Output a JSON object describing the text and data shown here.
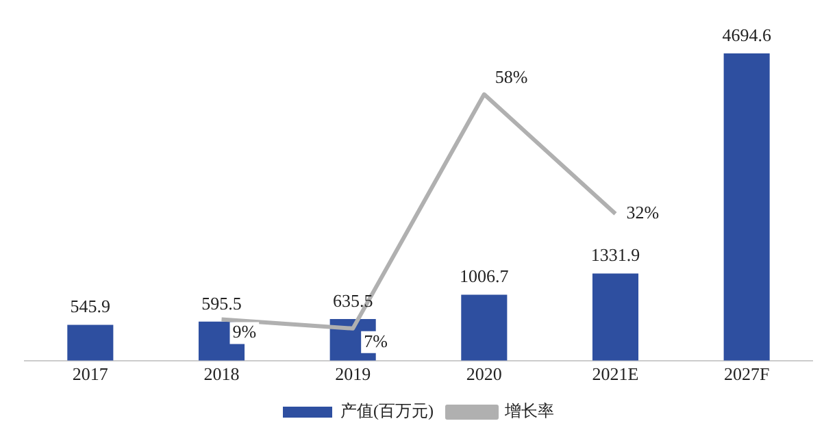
{
  "chart_data": {
    "type": "bar",
    "categories": [
      "2017",
      "2018",
      "2019",
      "2020",
      "2021E",
      "2027F"
    ],
    "series": [
      {
        "name": "产值(百万元)",
        "color": "#2e4fa0",
        "values": [
          545.9,
          595.5,
          635.5,
          1006.7,
          1331.9,
          4694.6
        ],
        "value_labels": [
          "545.9",
          "595.5",
          "635.5",
          "1006.7",
          "1331.9",
          "4694.6"
        ]
      },
      {
        "name": "增长率",
        "type": "line",
        "axis": "y2",
        "color": "#b0b0b0",
        "values": [
          null,
          9,
          7,
          58,
          32,
          null
        ],
        "value_labels": [
          null,
          "9%",
          "7%",
          "58%",
          "32%",
          null
        ]
      }
    ],
    "legend": "bottom",
    "grid": false,
    "tick_labels": "x",
    "marker": "none"
  }
}
